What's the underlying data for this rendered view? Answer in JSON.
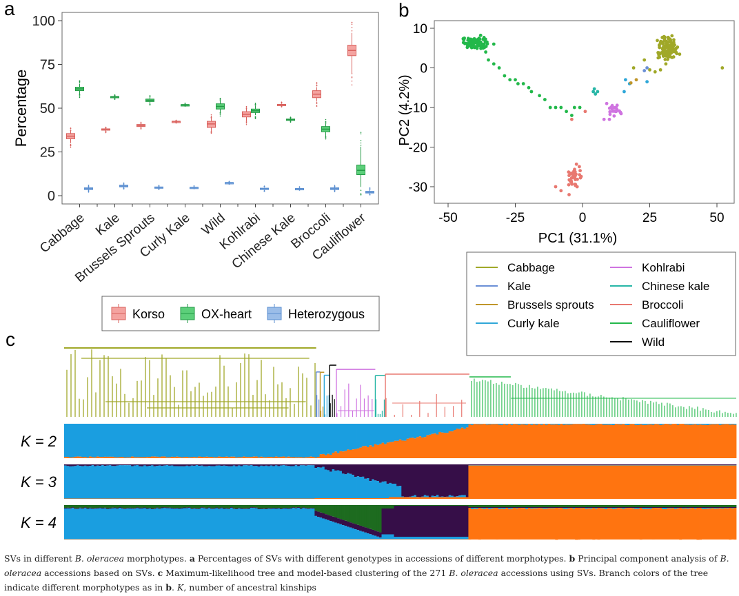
{
  "panel_labels": {
    "a": "a",
    "b": "b",
    "c": "c"
  },
  "colors": {
    "korso": "#f4a3a0",
    "korso_edge": "#d8605c",
    "oxheart": "#5ccf7a",
    "oxheart_edge": "#229944",
    "het": "#9bbde8",
    "het_edge": "#5b8fd0",
    "cabbage": "#a0a828",
    "kale": "#6a8fd6",
    "brussels": "#c0962a",
    "curly": "#2fa7d8",
    "kohlrabi": "#cf74e0",
    "chinese": "#27b6a6",
    "broccoli": "#e87870",
    "cauliflower": "#22b84a",
    "wild": "#000000",
    "k_blue": "#1a9ee0",
    "k_orange": "#ff7410",
    "k_purple": "#360e48",
    "k_green": "#1d6b1f"
  },
  "chart_data": [
    {
      "type": "box",
      "panel": "a",
      "ylabel": "Percentage",
      "ylim": [
        0,
        100
      ],
      "yticks": [
        0,
        25,
        50,
        75,
        100
      ],
      "categories": [
        "Cabbage",
        "Kale",
        "Brussels Sprouts",
        "Curly Kale",
        "Wild",
        "Kohlrabi",
        "Chinese Kale",
        "Broccoli",
        "Cauliflower"
      ],
      "legend": [
        "Korso",
        "OX-heart",
        "Heterozygous"
      ],
      "series": [
        {
          "name": "Korso",
          "median": [
            34,
            38,
            40,
            42.5,
            41,
            46.5,
            52,
            58,
            83
          ],
          "q1": [
            32.5,
            37.5,
            39.5,
            42.5,
            39,
            45,
            51.8,
            56,
            80
          ],
          "q3": [
            35.5,
            38.2,
            40.7,
            42.5,
            42.5,
            48,
            52.2,
            60,
            86
          ],
          "wlo": [
            30,
            37,
            39,
            42.5,
            37,
            43,
            51.5,
            54,
            70
          ],
          "whi": [
            37,
            38.5,
            41,
            42.5,
            44,
            49.5,
            52.5,
            62,
            93
          ]
        },
        {
          "name": "OX-heart",
          "median": [
            61,
            56.5,
            54.5,
            52,
            51,
            48.5,
            43.5,
            38,
            14.5
          ],
          "q1": [
            60,
            56.3,
            53.8,
            52,
            49.5,
            47.5,
            43.2,
            36.5,
            12
          ],
          "q3": [
            62,
            56.7,
            55.2,
            52,
            52.5,
            49.5,
            43.8,
            39.5,
            17.5
          ],
          "wlo": [
            58,
            56,
            53,
            52,
            47.5,
            46,
            43,
            34,
            5
          ],
          "whi": [
            64,
            57,
            56,
            52,
            54,
            51,
            44,
            41,
            28
          ]
        },
        {
          "name": "Heterozygous",
          "median": [
            4,
            5.5,
            4.8,
            4.8,
            7.5,
            4,
            4,
            4,
            2
          ],
          "q1": [
            3.5,
            5,
            4.6,
            4.8,
            7.5,
            3.7,
            3.9,
            3.5,
            1.5
          ],
          "q3": [
            4.5,
            6,
            5,
            4.8,
            7.5,
            4.3,
            4.1,
            4.5,
            2.5
          ],
          "wlo": [
            3,
            4.5,
            4.4,
            4.8,
            7.5,
            3.4,
            3.8,
            3,
            0.8
          ],
          "whi": [
            5,
            6.5,
            5.2,
            4.8,
            7.5,
            4.6,
            4.2,
            5,
            3.5
          ]
        }
      ]
    },
    {
      "type": "scatter",
      "panel": "b",
      "xlabel": "PC1 (31.1%)",
      "ylabel": "PC2 (4.2%)",
      "xlim": [
        -52,
        56
      ],
      "ylim": [
        -35,
        12
      ],
      "xticks": [
        -50,
        -25,
        0,
        25,
        50
      ],
      "yticks": [
        -30,
        -20,
        -10,
        0,
        10
      ],
      "legend": [
        "Cabbage",
        "Kale",
        "Brussels sprouts",
        "Curly kale",
        "Wild",
        "Kohlrabi",
        "Chinese kale",
        "Broccoli",
        "Cauliflower"
      ],
      "legend_layout": [
        [
          "Cabbage",
          "Kohlrabi"
        ],
        [
          "Kale",
          "Chinese kale"
        ],
        [
          "Brussels sprouts",
          "Broccoli"
        ],
        [
          "Curly kale",
          "Cauliflower"
        ],
        [
          "",
          "Wild"
        ]
      ],
      "series": [
        {
          "name": "Cabbage",
          "cluster": {
            "cx": 32,
            "cy": 5,
            "sx": 3,
            "sy": 2.3,
            "n": 130
          },
          "points": [
            [
              29,
              -0.5
            ],
            [
              27,
              -1
            ],
            [
              31,
              1
            ],
            [
              25,
              -0.5
            ],
            [
              23,
              2
            ],
            [
              19,
              0
            ],
            [
              52,
              0
            ]
          ]
        },
        {
          "name": "Cauliflower",
          "cluster": {
            "cx": -40,
            "cy": 6.5,
            "sx": 3.5,
            "sy": 1.3,
            "n": 90
          },
          "points": [
            [
              -36,
              4
            ],
            [
              -35,
              2
            ],
            [
              -33,
              1
            ],
            [
              -31,
              0
            ],
            [
              -29,
              -2
            ],
            [
              -27,
              -3
            ],
            [
              -25,
              -3
            ],
            [
              -24,
              -4
            ],
            [
              -22,
              -4
            ],
            [
              -20,
              -5
            ],
            [
              -19,
              -6
            ],
            [
              -16,
              -7
            ],
            [
              -14,
              -8
            ],
            [
              -12,
              -10
            ],
            [
              -10,
              -10
            ],
            [
              -8,
              -10
            ],
            [
              -6,
              -11
            ],
            [
              -4,
              -12
            ],
            [
              -3,
              -10
            ],
            [
              -1,
              -10
            ],
            [
              -33,
              6
            ],
            [
              -37,
              5
            ]
          ]
        },
        {
          "name": "Broccoli",
          "cluster": {
            "cx": -3,
            "cy": -27,
            "sx": 2.2,
            "sy": 2.6,
            "n": 36
          },
          "points": [
            [
              -10,
              -30
            ],
            [
              -8,
              -31
            ],
            [
              -5,
              -32
            ],
            [
              -2,
              -30
            ],
            [
              -4,
              -13
            ],
            [
              1,
              -11
            ]
          ]
        },
        {
          "name": "Kohlrabi",
          "cluster": {
            "cx": 12,
            "cy": -11,
            "sx": 2.2,
            "sy": 1.6,
            "n": 20
          },
          "points": [
            [
              9,
              -9
            ],
            [
              8,
              -13
            ],
            [
              10,
              -13
            ]
          ]
        },
        {
          "name": "Chinese kale",
          "points": [
            [
              4,
              -6
            ],
            [
              4.8,
              -6.6
            ],
            [
              5.6,
              -6
            ],
            [
              4.4,
              -5.3
            ]
          ]
        },
        {
          "name": "Curly kale",
          "points": [
            [
              16,
              -3
            ],
            [
              15.5,
              -6
            ],
            [
              17.5,
              -4
            ],
            [
              24,
              -3.5
            ]
          ]
        },
        {
          "name": "Kale",
          "points": [
            [
              23,
              -0.7
            ],
            [
              24,
              0
            ]
          ]
        },
        {
          "name": "Brussels sprouts",
          "points": [
            [
              20,
              -3
            ],
            [
              18,
              -3.8
            ]
          ]
        },
        {
          "name": "Wild",
          "points": []
        }
      ]
    },
    {
      "type": "tree_and_structure",
      "panel": "c",
      "n_accessions": 271,
      "tree_groups": [
        {
          "name": "Cabbage",
          "fraction": 0.375
        },
        {
          "name": "Kale",
          "fraction": 0.006
        },
        {
          "name": "Brussels sprouts",
          "fraction": 0.006
        },
        {
          "name": "Curly kale",
          "fraction": 0.008
        },
        {
          "name": "Wild",
          "fraction": 0.01
        },
        {
          "name": "Kohlrabi",
          "fraction": 0.058
        },
        {
          "name": "Chinese kale",
          "fraction": 0.015
        },
        {
          "name": "Broccoli",
          "fraction": 0.125
        },
        {
          "name": "Cauliflower",
          "fraction": 0.397
        }
      ],
      "structure_rows": [
        {
          "label": "K = 2",
          "k": 2
        },
        {
          "label": "K = 3",
          "k": 3
        },
        {
          "label": "K = 4",
          "k": 4
        }
      ]
    }
  ],
  "caption": {
    "t1": "SVs in different ",
    "t2": "B. oleracea",
    "t3": " morphotypes. ",
    "t4": "a",
    "t5": " Percentages of SVs with different genotypes in accessions of different morphotypes. ",
    "t6": "b",
    "t7": " Principal component analysis of ",
    "t8": "B. oleracea",
    "t9": " accessions based on SVs. ",
    "t10": "c",
    "t11": " Maximum-likelihood tree and model-based clustering of the 271 ",
    "t12": "B. oleracea",
    "t13": " accessions using SVs. Branch colors of the tree indicate different morphotypes as in ",
    "t14": "b",
    "t15": ". ",
    "t16": "K",
    "t17": ", number of ancestral kinships"
  }
}
